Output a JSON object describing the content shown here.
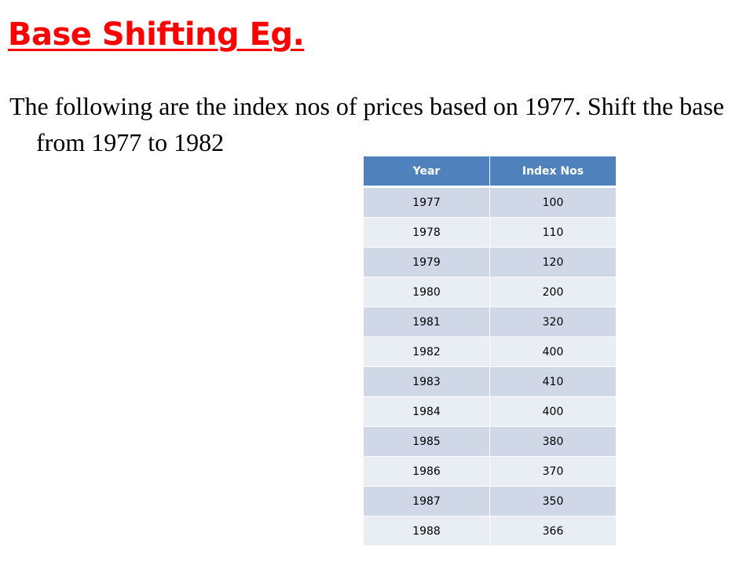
{
  "slide": {
    "title": "Base Shifting Eg.",
    "body": "The following are the index nos of prices based on 1977. Shift the base from 1977 to 1982"
  },
  "colors": {
    "title": "#ff0000",
    "table_header": "#4f81bd",
    "row_dark": "#d0d8e8",
    "row_light": "#e9edf4"
  },
  "table": {
    "headers": [
      "Year",
      "Index Nos"
    ],
    "rows": [
      [
        "1977",
        "100"
      ],
      [
        "1978",
        "110"
      ],
      [
        "1979",
        "120"
      ],
      [
        "1980",
        "200"
      ],
      [
        "1981",
        "320"
      ],
      [
        "1982",
        "400"
      ],
      [
        "1983",
        "410"
      ],
      [
        "1984",
        "400"
      ],
      [
        "1985",
        "380"
      ],
      [
        "1986",
        "370"
      ],
      [
        "1987",
        "350"
      ],
      [
        "1988",
        "366"
      ]
    ]
  }
}
